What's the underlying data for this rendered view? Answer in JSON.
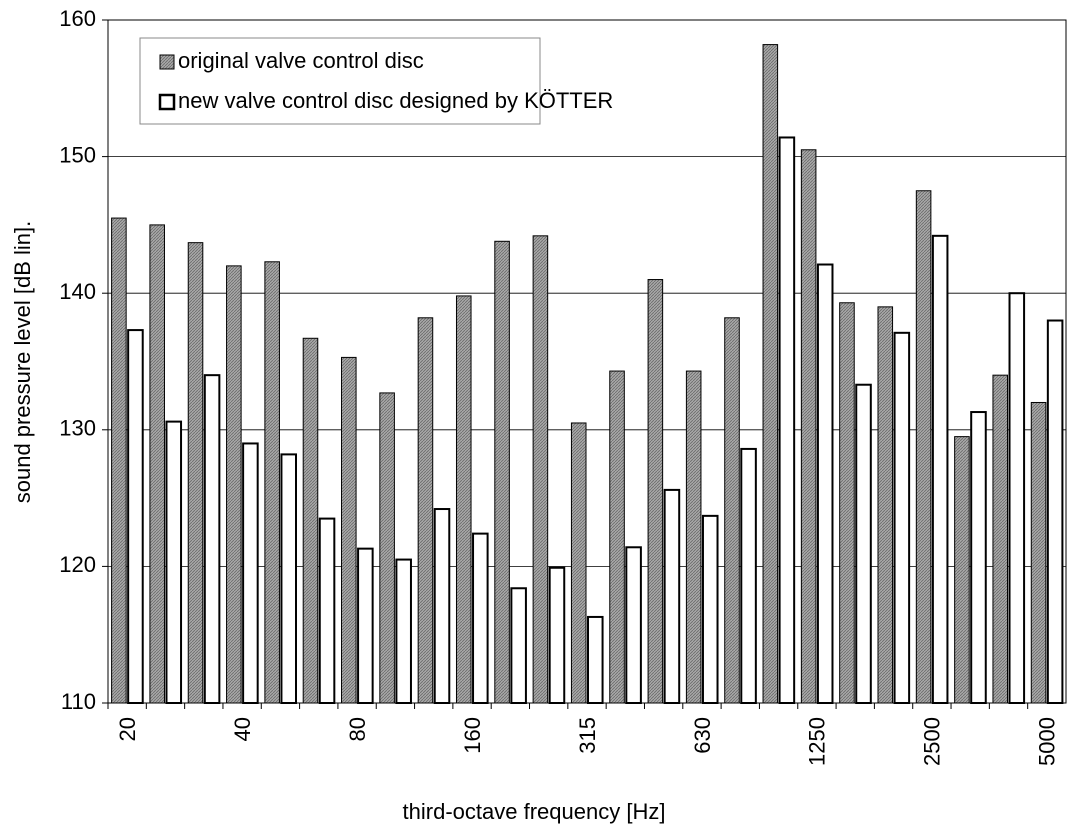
{
  "chart_data": {
    "type": "bar",
    "x_label": "third-octave frequency [Hz]",
    "y_label": "sound pressure level [dB lin].",
    "categories": [
      "20",
      null,
      null,
      "40",
      null,
      null,
      "80",
      null,
      null,
      "160",
      null,
      null,
      "315",
      null,
      null,
      "630",
      null,
      null,
      "1250",
      null,
      null,
      "2500",
      null,
      null,
      "5000"
    ],
    "series": [
      {
        "name": "original valve control disc",
        "color": "#9a9a9a",
        "values": [
          145.5,
          145,
          143.7,
          142,
          142.3,
          136.7,
          135.3,
          132.7,
          138.2,
          139.8,
          143.8,
          144.2,
          130.5,
          134.3,
          141,
          134.3,
          138.2,
          158.2,
          150.5,
          139.3,
          139,
          147.5,
          129.5,
          134,
          132
        ]
      },
      {
        "name": "new valve control disc designed by KÖTTER",
        "color": "#ffffff",
        "values": [
          137.3,
          130.6,
          134,
          129,
          128.2,
          123.5,
          121.3,
          120.5,
          124.2,
          122.4,
          118.4,
          119.9,
          116.3,
          121.4,
          125.6,
          123.7,
          128.6,
          151.4,
          142.1,
          133.3,
          137.1,
          144.2,
          131.3,
          140,
          138
        ]
      }
    ],
    "ylim": [
      110,
      160
    ],
    "yticks": [
      110,
      120,
      130,
      140,
      150,
      160
    ],
    "grid": true,
    "legend": "upper left"
  }
}
